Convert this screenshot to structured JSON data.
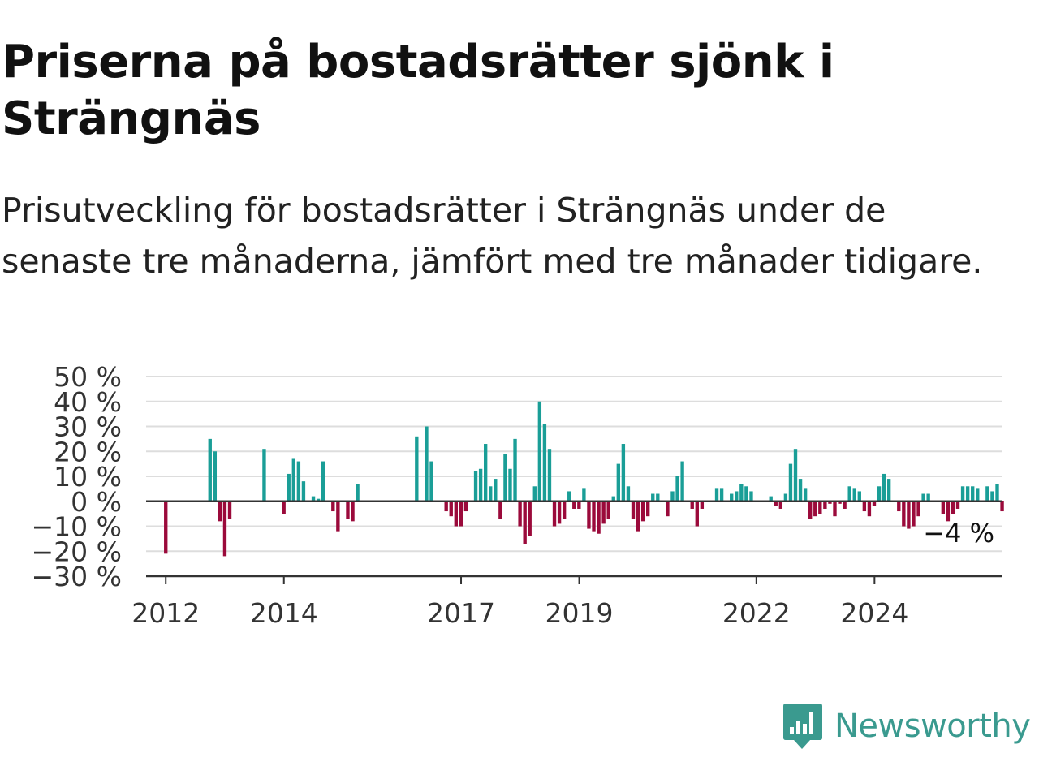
{
  "header": {
    "title": "Priserna på bostadsrätter sjönk i Strängnäs",
    "subtitle": "Prisutveckling för bostadsrätter i Strängnäs under de senaste tre månaderna, jämfört med tre månader tidigare."
  },
  "brand": {
    "name": "Newsworthy",
    "color": "#3a9a8f",
    "icon": "newsworthy-logo-icon"
  },
  "colors": {
    "positive": "#1a9e97",
    "negative": "#9b0a3b",
    "grid": "#dddddd",
    "axis": "#333333"
  },
  "chart_data": {
    "type": "bar",
    "title": "",
    "xlabel": "",
    "ylabel": "",
    "ylim": [
      -30,
      50
    ],
    "yticks": [
      50,
      40,
      30,
      20,
      10,
      0,
      -10,
      -20,
      -30
    ],
    "ytick_labels": [
      "50 %",
      "40 %",
      "30 %",
      "20 %",
      "10 %",
      "0 %",
      "−10 %",
      "−20 %",
      "−30 %"
    ],
    "xticks": [
      2012,
      2014,
      2017,
      2019,
      2022,
      2024
    ],
    "xtick_labels": [
      "2012",
      "2014",
      "2017",
      "2019",
      "2022",
      "2024"
    ],
    "grid": true,
    "legend": "none",
    "x_start": 2012.0,
    "x_step": 0.0833,
    "values": [
      -21,
      0,
      0,
      0,
      0,
      0,
      0,
      0,
      0,
      25,
      20,
      -8,
      -22,
      -7,
      0,
      0,
      0,
      0,
      0,
      0,
      21,
      0,
      0,
      0,
      -5,
      11,
      17,
      16,
      8,
      0,
      2,
      1,
      16,
      0,
      -4,
      -12,
      0,
      -7,
      -8,
      7,
      0,
      0,
      0,
      0,
      0,
      0,
      0,
      0,
      0,
      0,
      0,
      26,
      0,
      30,
      16,
      0,
      0,
      -4,
      -6,
      -10,
      -10,
      -4,
      0,
      12,
      13,
      23,
      6,
      9,
      -7,
      19,
      13,
      25,
      -10,
      -17,
      -14,
      6,
      40,
      31,
      21,
      -10,
      -9,
      -7,
      4,
      -3,
      -3,
      5,
      -11,
      -12,
      -13,
      -9,
      -7,
      2,
      15,
      23,
      6,
      -7,
      -12,
      -8,
      -6,
      3,
      3,
      0,
      -6,
      4,
      10,
      16,
      0,
      -3,
      -10,
      -3,
      0,
      0,
      5,
      5,
      0,
      3,
      4,
      7,
      6,
      4,
      0,
      0,
      0,
      2,
      -2,
      -3,
      3,
      15,
      21,
      9,
      5,
      -7,
      -6,
      -5,
      -3,
      -1,
      -6,
      -1,
      -3,
      6,
      5,
      4,
      -4,
      -6,
      -2,
      6,
      11,
      9,
      0,
      -4,
      -10,
      -11,
      -10,
      -6,
      3,
      3,
      0,
      0,
      -5,
      -8,
      -5,
      -3,
      6,
      6,
      6,
      5,
      0,
      6,
      4,
      7,
      -4
    ],
    "annotations": [
      {
        "text": "−4 %",
        "target": "last"
      }
    ]
  }
}
